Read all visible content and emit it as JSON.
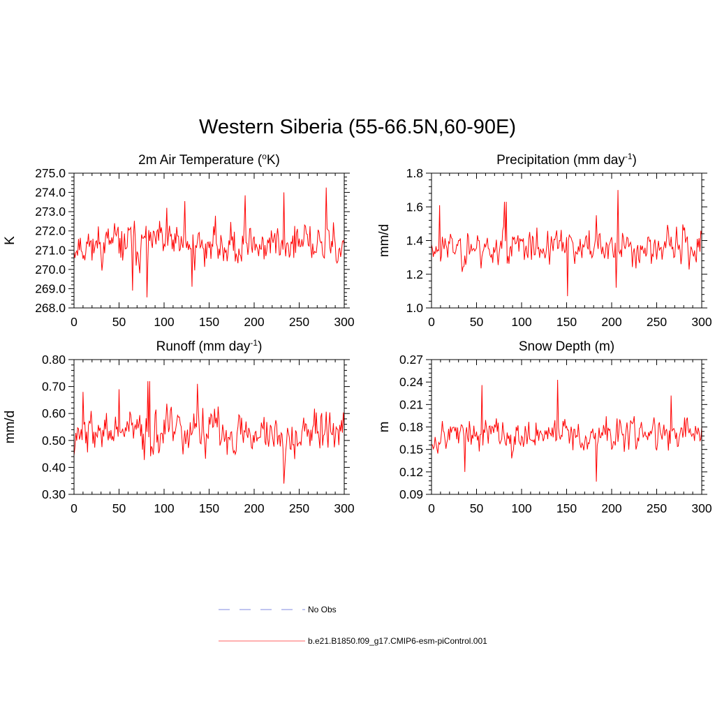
{
  "title": "Western Siberia (55-66.5N,60-90E)",
  "legend": [
    {
      "label": "No Obs",
      "color": "#9aa0e8",
      "dash": true
    },
    {
      "label": "b.e21.B1850.f09_g17.CMIP6-esm-piControl.001",
      "color": "#ff8080",
      "dash": false
    }
  ],
  "series_color": "#ff0000",
  "chart_data": [
    {
      "type": "line",
      "title": "2m Air Temperature (",
      "title_sup": "o",
      "title_after": "K)",
      "ylabel": "K",
      "xlim": [
        0,
        300
      ],
      "ylim": [
        268.0,
        275.0
      ],
      "xticks": [
        "0",
        "50",
        "100",
        "150",
        "200",
        "250",
        "300"
      ],
      "yticks": [
        "268.0",
        "269.0",
        "270.0",
        "271.0",
        "272.0",
        "273.0",
        "274.0",
        "275.0"
      ],
      "mean": 271.3,
      "amp": 0.85,
      "peaks": [
        [
          280,
          274.25
        ],
        [
          233,
          274.0
        ],
        [
          190,
          273.85
        ],
        [
          123,
          273.55
        ],
        [
          103,
          273.2
        ],
        [
          81,
          268.55
        ],
        [
          65,
          268.9
        ],
        [
          131,
          269.1
        ]
      ],
      "seed": 11
    },
    {
      "type": "line",
      "title": "Precipitation (mm day",
      "title_sup": "-1",
      "title_after": ")",
      "ylabel": "mm/d",
      "xlim": [
        0,
        300
      ],
      "ylim": [
        1.0,
        1.8
      ],
      "xticks": [
        "0",
        "50",
        "100",
        "150",
        "200",
        "250",
        "300"
      ],
      "yticks": [
        "1.0",
        "1.2",
        "1.4",
        "1.6",
        "1.8"
      ],
      "mean": 1.36,
      "amp": 0.085,
      "peaks": [
        [
          207,
          1.7
        ],
        [
          9,
          1.61
        ],
        [
          81,
          1.63
        ],
        [
          83,
          1.63
        ],
        [
          183,
          1.55
        ],
        [
          151,
          1.07
        ],
        [
          205,
          1.12
        ]
      ],
      "seed": 23
    },
    {
      "type": "line",
      "title": "Runoff (mm day",
      "title_sup": "-1",
      "title_after": ")",
      "ylabel": "mm/d",
      "xlim": [
        0,
        300
      ],
      "ylim": [
        0.3,
        0.8
      ],
      "xticks": [
        "0",
        "50",
        "100",
        "150",
        "200",
        "250",
        "300"
      ],
      "yticks": [
        "0.30",
        "0.40",
        "0.50",
        "0.60",
        "0.70",
        "0.80"
      ],
      "mean": 0.53,
      "amp": 0.065,
      "peaks": [
        [
          82,
          0.72
        ],
        [
          84,
          0.72
        ],
        [
          137,
          0.71
        ],
        [
          10,
          0.68
        ],
        [
          233,
          0.34
        ],
        [
          50,
          0.69
        ]
      ],
      "seed": 37
    },
    {
      "type": "line",
      "title": "Snow Depth (m)",
      "title_sup": "",
      "title_after": "",
      "ylabel": "m",
      "xlim": [
        0,
        300
      ],
      "ylim": [
        0.09,
        0.27
      ],
      "xticks": [
        "0",
        "50",
        "100",
        "150",
        "200",
        "250",
        "300"
      ],
      "yticks": [
        "0.09",
        "0.12",
        "0.15",
        "0.18",
        "0.21",
        "0.24",
        "0.27"
      ],
      "mean": 0.17,
      "amp": 0.017,
      "peaks": [
        [
          140,
          0.243
        ],
        [
          56,
          0.236
        ],
        [
          266,
          0.222
        ],
        [
          183,
          0.107
        ],
        [
          37,
          0.12
        ]
      ],
      "seed": 53
    }
  ]
}
